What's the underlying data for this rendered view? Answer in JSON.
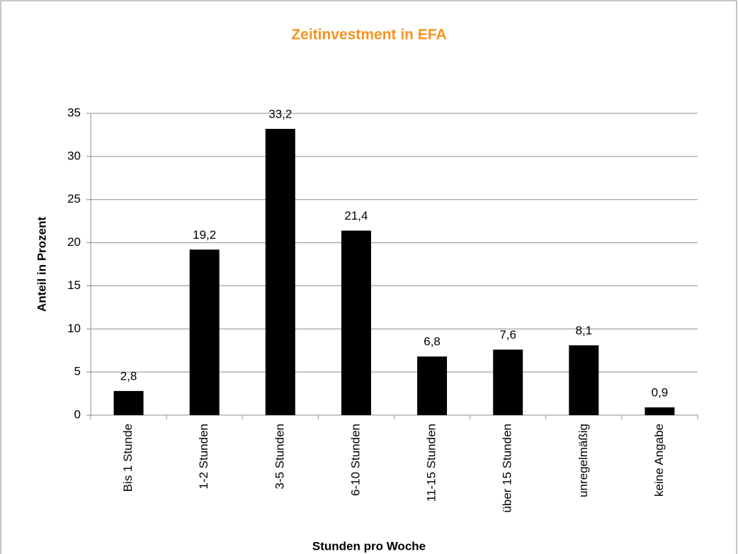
{
  "chart_data": {
    "type": "bar",
    "title": "Zeitinvestment in EFA",
    "x_label": "Stunden pro Woche",
    "y_label": "Anteil in Prozent",
    "categories": [
      "Bis 1 Stunde",
      "1-2 Stunden",
      "3-5 Stunden",
      "6-10 Stunden",
      "11-15 Stunden",
      "über 15 Stunden",
      "unregelmäßig",
      "keine Angabe"
    ],
    "values": [
      2.8,
      19.2,
      33.2,
      21.4,
      6.8,
      7.6,
      8.1,
      0.9
    ],
    "value_labels": [
      "2,8",
      "19,2",
      "33,2",
      "21,4",
      "6,8",
      "7,6",
      "8,1",
      "0,9"
    ],
    "color": "#000000",
    "ylim": [
      0,
      35
    ],
    "yticks": [
      0,
      5,
      10,
      15,
      20,
      25,
      30,
      35
    ],
    "grid": true
  }
}
